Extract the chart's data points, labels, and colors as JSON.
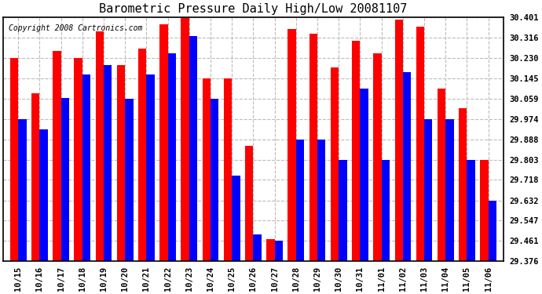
{
  "title": "Barometric Pressure Daily High/Low 20081107",
  "copyright": "Copyright 2008 Cartronics.com",
  "dates": [
    "10/15",
    "10/16",
    "10/17",
    "10/18",
    "10/19",
    "10/20",
    "10/21",
    "10/22",
    "10/23",
    "10/24",
    "10/25",
    "10/26",
    "10/27",
    "10/28",
    "10/29",
    "10/30",
    "10/31",
    "11/01",
    "11/02",
    "11/03",
    "11/04",
    "11/05",
    "11/06"
  ],
  "highs": [
    30.23,
    30.08,
    30.26,
    30.23,
    30.34,
    30.2,
    30.27,
    30.37,
    30.4,
    30.145,
    30.145,
    29.86,
    29.47,
    30.35,
    30.33,
    30.19,
    30.3,
    30.25,
    30.39,
    30.36,
    30.1,
    30.02,
    29.8
  ],
  "lows": [
    29.974,
    29.93,
    30.06,
    30.16,
    30.2,
    30.059,
    30.16,
    30.25,
    30.32,
    30.059,
    29.735,
    29.49,
    29.461,
    29.888,
    29.888,
    29.803,
    30.1,
    29.803,
    30.17,
    29.974,
    29.974,
    29.803,
    29.632
  ],
  "ylim_min": 29.376,
  "ylim_max": 30.401,
  "yticks": [
    29.376,
    29.461,
    29.547,
    29.632,
    29.718,
    29.803,
    29.888,
    29.974,
    30.059,
    30.145,
    30.23,
    30.316,
    30.401
  ],
  "high_color": "#FF0000",
  "low_color": "#0000FF",
  "bg_color": "#FFFFFF",
  "title_fontsize": 11,
  "copyright_fontsize": 7,
  "bar_width": 0.38,
  "grid_color": "#BBBBBB",
  "tick_label_fontsize": 7.5
}
